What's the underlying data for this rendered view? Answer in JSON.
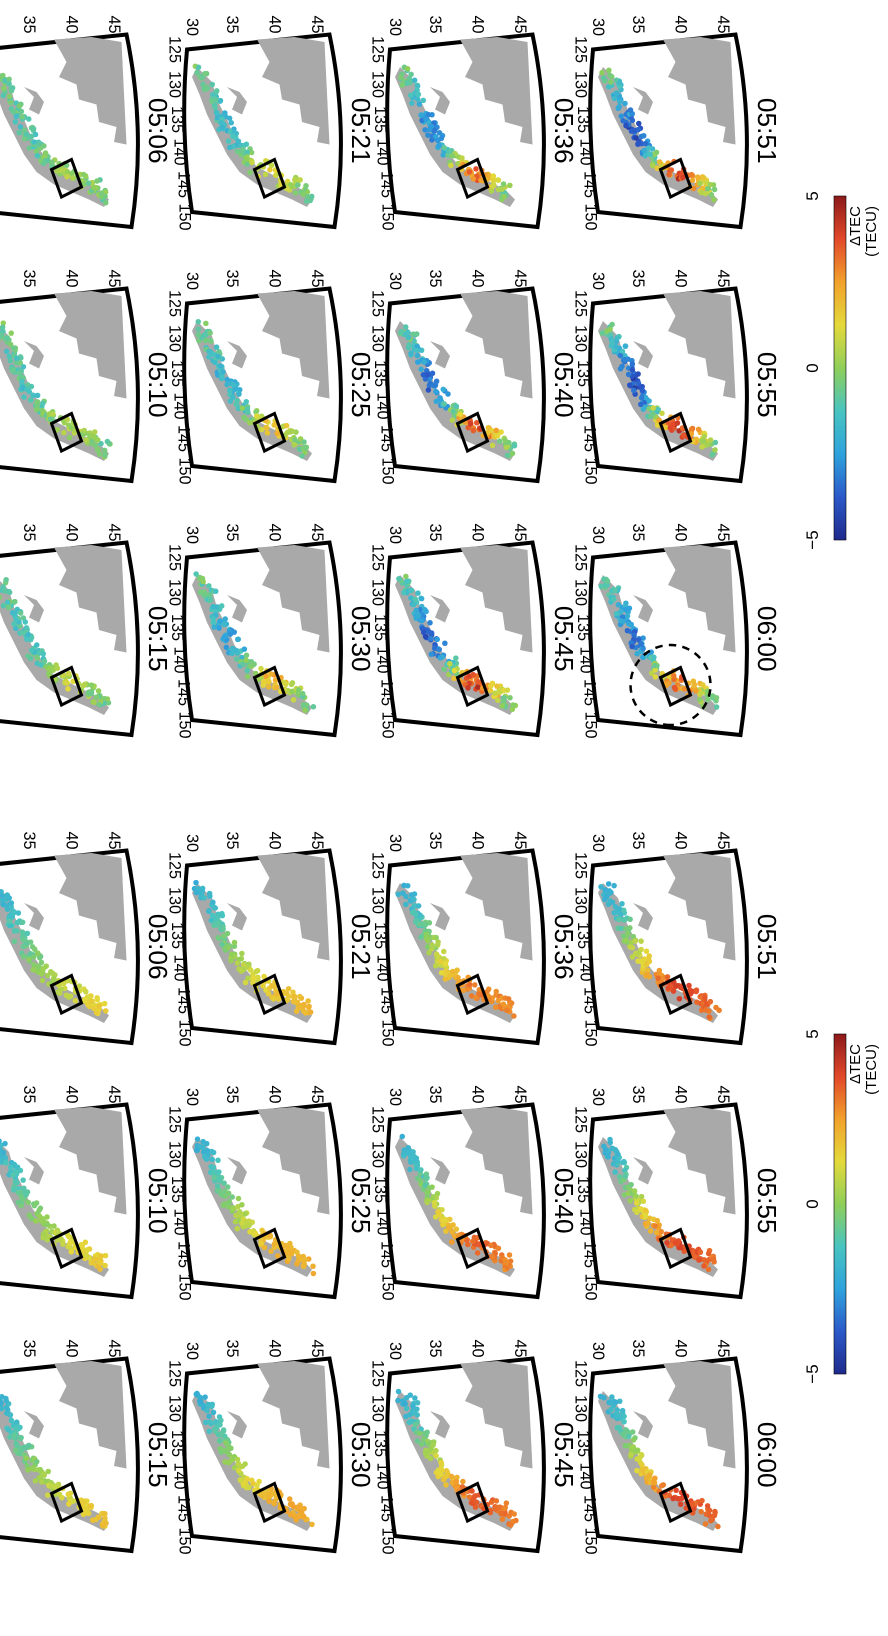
{
  "figures": [
    {
      "name": "smooth-model-maps",
      "times": [
        "05:06",
        "05:10",
        "05:15",
        "05:21",
        "05:25",
        "05:30",
        "05:36",
        "05:40",
        "05:45",
        "05:51",
        "05:55",
        "06:00"
      ],
      "intensity": [
        0.1,
        0.15,
        0.2,
        0.35,
        0.45,
        0.5,
        0.75,
        0.85,
        0.9,
        1.0,
        1.0,
        1.0
      ],
      "circle_in_panel": null
    },
    {
      "name": "observed-tec-maps",
      "times": [
        "05:06",
        "05:10",
        "05:15",
        "05:21",
        "05:25",
        "05:30",
        "05:36",
        "05:40",
        "05:45",
        "05:51",
        "05:55",
        "06:00"
      ],
      "intensity": [
        0.15,
        0.2,
        0.25,
        0.35,
        0.45,
        0.55,
        0.75,
        0.85,
        0.9,
        1.0,
        1.0,
        0.8
      ],
      "circle_in_panel": "06:00"
    }
  ],
  "axes": {
    "lon_ticks": [
      "125",
      "130",
      "135",
      "140",
      "145",
      "150"
    ],
    "lat_ticks": [
      "30",
      "35",
      "40",
      "45"
    ],
    "degree_symbol": "°"
  },
  "colorbar": {
    "min_label": "−5",
    "mid_label": "0",
    "max_label": "5",
    "title": "ΔTEC",
    "unit": "(TECU)",
    "range": [
      -5,
      5
    ],
    "colors": [
      "#1f2a8c",
      "#2b59c9",
      "#2fa3dd",
      "#49c4c0",
      "#8fcf5a",
      "#e4d93a",
      "#f2a12c",
      "#e2482a",
      "#8c1a1a"
    ]
  }
}
